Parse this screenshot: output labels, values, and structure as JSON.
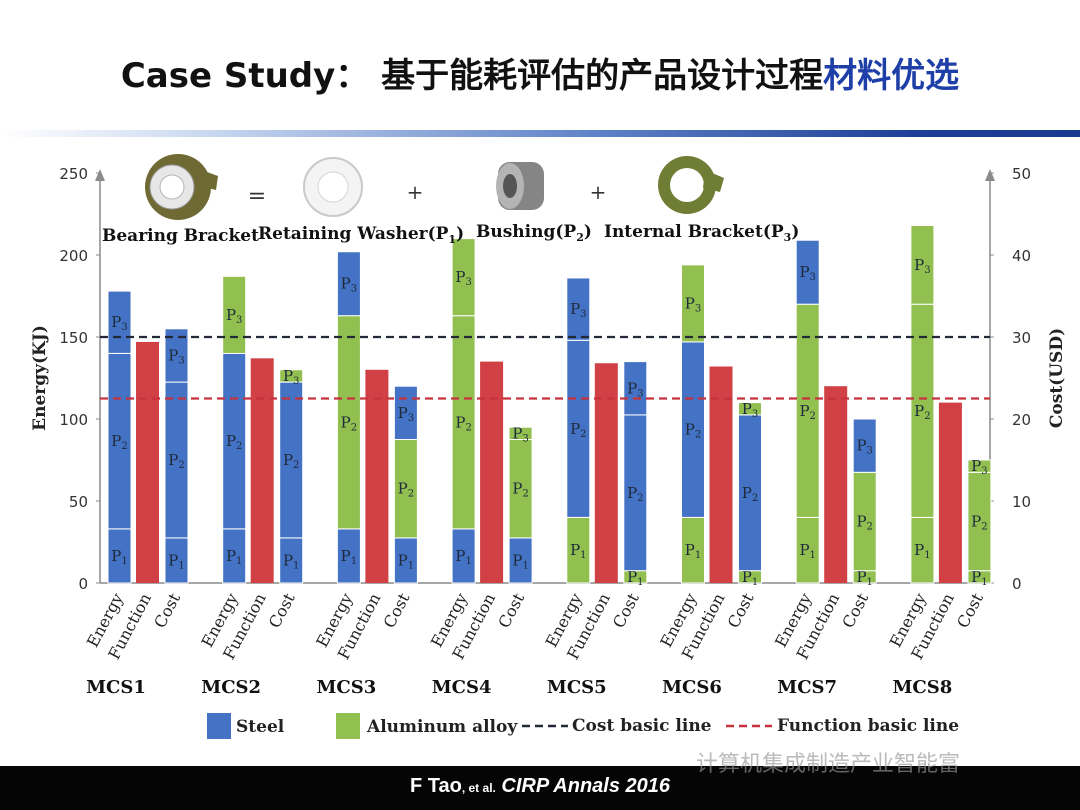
{
  "slide": {
    "title_prefix": "Case Study：",
    "title_main": "基于能耗评估的产品设计过程",
    "title_highlight": "材料优选"
  },
  "citation": {
    "author": "F Tao",
    "etal": ", et al.",
    "journal": "CIRP Annals 2016"
  },
  "watermark": "计算机集成制造产业智能富",
  "colors": {
    "steel": "#4472c4",
    "aluminum": "#92c050",
    "function": "#d04045",
    "cost_line": "#222a38",
    "function_line": "#c8323c"
  },
  "diagram": {
    "equals": "=",
    "plus": "+",
    "labels": {
      "bracket": "Bearing Bracket",
      "washer": "Retaining Washer(P",
      "bushing": "Bushing(P",
      "internal": "Internal  Bracket(P"
    }
  },
  "chart_data": {
    "type": "bar",
    "subtype": "stacked grouped bar with dual axis",
    "ylabel_left": "Energy(KJ)",
    "ylabel_right": "Cost(USD)",
    "ylim_left": [
      0,
      250
    ],
    "ylim_right": [
      0,
      50
    ],
    "yticks_left": [
      0,
      50,
      100,
      150,
      200,
      250
    ],
    "yticks_right": [
      0,
      10,
      20,
      30,
      40,
      50
    ],
    "bar_labels": [
      "Energy",
      "Function",
      "Cost"
    ],
    "segment_labels": [
      "P1",
      "P2",
      "P3"
    ],
    "lines": [
      {
        "name": "Cost basic line",
        "value_right_axis": 30,
        "color": "#222a38",
        "style": "dashed"
      },
      {
        "name": "Function basic line",
        "value_right_axis": 22.5,
        "color": "#c8323c",
        "style": "dashed"
      }
    ],
    "legend": [
      {
        "name": "Steel",
        "color": "#4472c4"
      },
      {
        "name": "Aluminum  alloy",
        "color": "#92c050"
      },
      {
        "name": "Cost  basic line",
        "color": "#222a38",
        "style": "dashed"
      },
      {
        "name": "Function  basic line",
        "color": "#c8323c",
        "style": "dashed"
      }
    ],
    "legend_position": "bottom",
    "groups": [
      {
        "name": "MCS1",
        "materials": [
          "S",
          "S",
          "S"
        ],
        "energy": [
          33,
          107,
          38
        ],
        "function_value": 147,
        "cost": [
          5.5,
          19,
          6.5
        ]
      },
      {
        "name": "MCS2",
        "materials": [
          "S",
          "S",
          "A"
        ],
        "energy": [
          33,
          107,
          47
        ],
        "function_value": 137,
        "cost": [
          5.5,
          19,
          1.5
        ]
      },
      {
        "name": "MCS3",
        "materials": [
          "S",
          "A",
          "S"
        ],
        "energy": [
          33,
          130,
          39
        ],
        "function_value": 130,
        "cost": [
          5.5,
          12,
          6.5
        ]
      },
      {
        "name": "MCS4",
        "materials": [
          "S",
          "A",
          "A"
        ],
        "energy": [
          33,
          130,
          47
        ],
        "function_value": 135,
        "cost": [
          5.5,
          12,
          1.5
        ]
      },
      {
        "name": "MCS5",
        "materials": [
          "A",
          "S",
          "S"
        ],
        "energy": [
          40,
          108,
          38
        ],
        "function_value": 134,
        "cost": [
          1.5,
          19,
          6.5
        ]
      },
      {
        "name": "MCS6",
        "materials": [
          "A",
          "S",
          "A"
        ],
        "energy": [
          40,
          107,
          47
        ],
        "function_value": 132,
        "cost": [
          1.5,
          19,
          1.5
        ]
      },
      {
        "name": "MCS7",
        "materials": [
          "A",
          "A",
          "S"
        ],
        "energy": [
          40,
          130,
          39
        ],
        "function_value": 120,
        "cost": [
          1.5,
          12,
          6.5
        ]
      },
      {
        "name": "MCS8",
        "materials": [
          "A",
          "A",
          "A"
        ],
        "energy": [
          40,
          130,
          48
        ],
        "function_value": 110,
        "cost": [
          1.5,
          12,
          1.5
        ]
      }
    ]
  }
}
